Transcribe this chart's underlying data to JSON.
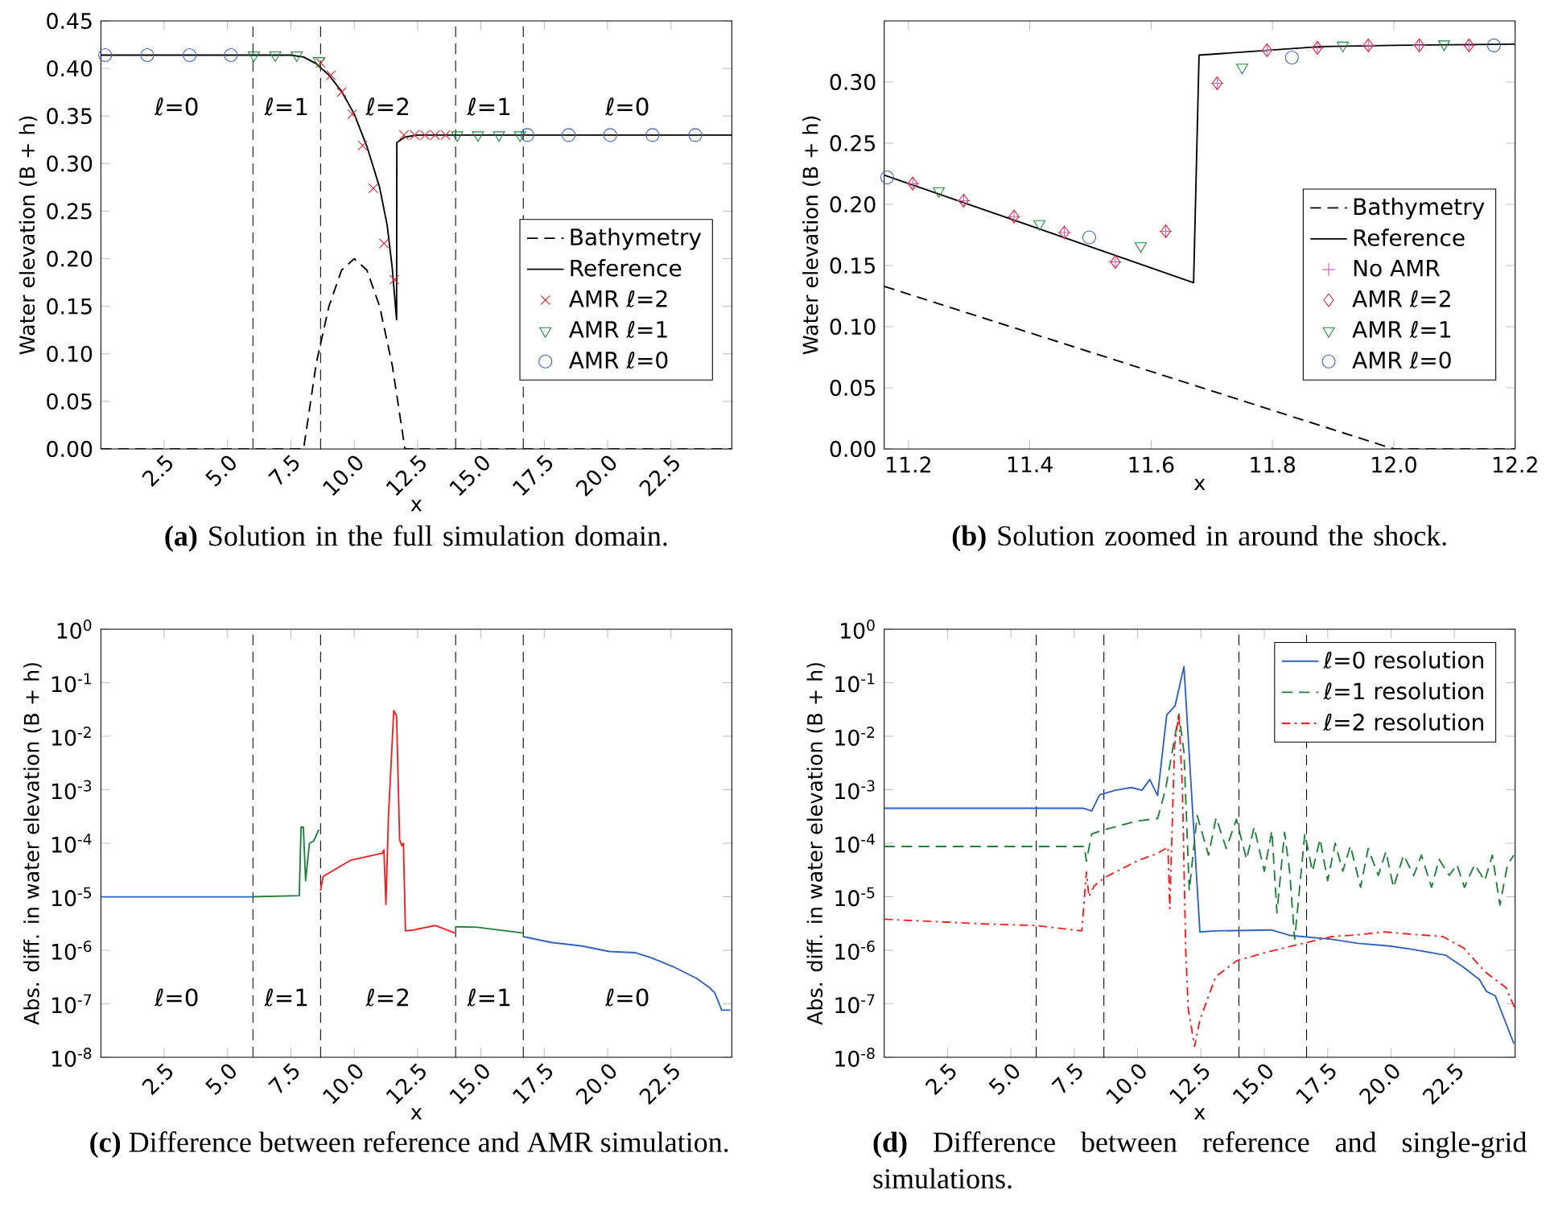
{
  "chart_data": [
    {
      "type": "line",
      "title": "**(a)** Solution in the full simulation domain.",
      "xlabel": "x",
      "ylabel": "Water elevation (B + h)",
      "xlim": [
        0,
        24.9
      ],
      "ylim": [
        0,
        0.45
      ],
      "xticks": [
        2.5,
        {
          "value": 5,
          "label": "5.0"
        },
        7.5,
        {
          "value": 10,
          "label": "10.0"
        },
        12.5,
        {
          "value": 15,
          "label": "15.0"
        },
        17.5,
        {
          "value": 20,
          "label": "20.0"
        },
        22.5
      ],
      "yticks": [
        {
          "value": 0,
          "label": "0.00"
        },
        {
          "value": 0.05,
          "label": "0.05"
        },
        {
          "value": 0.1,
          "label": "0.10"
        },
        {
          "value": 0.15,
          "label": "0.15"
        },
        {
          "value": 0.2,
          "label": "0.20"
        },
        {
          "value": 0.25,
          "label": "0.25"
        },
        {
          "value": 0.3,
          "label": "0.30"
        },
        {
          "value": 0.35,
          "label": "0.35"
        },
        {
          "value": 0.4,
          "label": "0.40"
        },
        {
          "value": 0.45,
          "label": "0.45"
        }
      ],
      "legend": "bottom right",
      "ref_lines": [
        {
          "axis": "x",
          "value": 6.0,
          "color": "#000000",
          "line_style": "dashed"
        },
        {
          "axis": "x",
          "value": 8.67,
          "color": "#000000",
          "line_style": "dashed"
        },
        {
          "axis": "x",
          "value": 14.0,
          "color": "#000000",
          "line_style": "dashed"
        },
        {
          "axis": "x",
          "value": 16.67,
          "color": "#000000",
          "line_style": "dashed"
        }
      ],
      "annotations": [
        "ℓ=0",
        "ℓ=1",
        "ℓ=2",
        "ℓ=1",
        "ℓ=0"
      ],
      "series": [
        {
          "name": "Bathymetry",
          "type": "line",
          "line_style": "dashed",
          "marker": "none",
          "color": "#000000",
          "x": [
            0,
            8,
            8.5,
            9,
            9.5,
            10,
            10.5,
            11,
            11.5,
            12,
            24.9
          ],
          "values": [
            0,
            0,
            0.09,
            0.15,
            0.188,
            0.2,
            0.188,
            0.15,
            0.088,
            0,
            0
          ]
        },
        {
          "name": "Reference",
          "type": "line",
          "line_style": "solid",
          "marker": "none",
          "color": "#000000",
          "x": [
            0,
            7.5,
            8,
            8.5,
            9,
            9.5,
            10,
            10.5,
            11,
            11.3,
            11.5,
            11.67,
            11.68,
            12,
            12.5,
            24.9
          ],
          "values": [
            0.414,
            0.414,
            0.412,
            0.405,
            0.393,
            0.376,
            0.352,
            0.318,
            0.275,
            0.235,
            0.19,
            0.136,
            0.322,
            0.328,
            0.33,
            0.33
          ]
        },
        {
          "name": "AMR ℓ=2",
          "type": "scatter",
          "marker": "cross",
          "color": "#e8202a",
          "x": [
            8.67,
            9.08,
            9.5,
            9.92,
            10.33,
            10.75,
            11.17,
            11.58,
            11.96,
            12.38,
            12.79,
            13.19,
            13.6
          ],
          "values": [
            0.406,
            0.393,
            0.375,
            0.352,
            0.319,
            0.274,
            0.216,
            0.178,
            0.33,
            0.33,
            0.33,
            0.33,
            0.33
          ]
        },
        {
          "name": "AMR ℓ=1",
          "type": "scatter",
          "marker": "triangle",
          "color": "#1a8a3a",
          "x": [
            6.04,
            6.88,
            7.73,
            8.6,
            14.06,
            14.88,
            15.71,
            16.54
          ],
          "values": [
            0.414,
            0.414,
            0.414,
            0.408,
            0.33,
            0.33,
            0.33,
            0.33
          ]
        },
        {
          "name": "AMR ℓ=0",
          "type": "scatter",
          "marker": "circle",
          "color": "#3a5fc0",
          "x": [
            0.17,
            1.83,
            3.5,
            5.13,
            16.83,
            18.46,
            20.1,
            21.77,
            23.46
          ],
          "values": [
            0.414,
            0.414,
            0.414,
            0.414,
            0.33,
            0.33,
            0.33,
            0.33,
            0.33
          ]
        }
      ]
    },
    {
      "type": "line",
      "title": "**(b)** Solution zoomed in around the shock.",
      "xlabel": "x",
      "ylabel": "Water elevation (B + h)",
      "xlim": [
        11.16,
        12.2
      ],
      "ylim": [
        0,
        0.35
      ],
      "xticks": [
        11.2,
        11.4,
        11.6,
        11.8,
        {
          "value": 12,
          "label": "12.0"
        },
        12.2
      ],
      "yticks": [
        {
          "value": 0,
          "label": "0.00"
        },
        {
          "value": 0.05,
          "label": "0.05"
        },
        {
          "value": 0.1,
          "label": "0.10"
        },
        {
          "value": 0.15,
          "label": "0.15"
        },
        {
          "value": 0.2,
          "label": "0.20"
        },
        {
          "value": 0.25,
          "label": "0.25"
        },
        {
          "value": 0.3,
          "label": "0.30"
        }
      ],
      "legend": "bottom right",
      "series": [
        {
          "name": "Bathymetry",
          "type": "line",
          "line_style": "dashed",
          "marker": "none",
          "color": "#000000",
          "x": [
            11.16,
            12.0,
            12.2
          ],
          "values": [
            0.133,
            0,
            0
          ]
        },
        {
          "name": "Reference",
          "type": "line",
          "line_style": "solid",
          "marker": "none",
          "color": "#000000",
          "x": [
            11.16,
            11.67,
            11.679,
            11.88,
            12.0,
            12.2
          ],
          "values": [
            0.224,
            0.136,
            0.322,
            0.329,
            0.33,
            0.331
          ]
        },
        {
          "name": "No AMR",
          "type": "scatter",
          "marker": "plus",
          "color": "#c45ec4",
          "x": [
            11.207,
            11.291,
            11.374,
            11.457,
            11.541,
            11.624,
            11.709,
            11.791,
            11.874,
            11.958,
            12.042,
            12.124
          ],
          "values": [
            0.217,
            0.203,
            0.19,
            0.177,
            0.153,
            0.178,
            0.299,
            0.326,
            0.328,
            0.33,
            0.33,
            0.33
          ]
        },
        {
          "name": "AMR ℓ=2",
          "type": "scatter",
          "marker": "diamond",
          "color": "#e8202a",
          "x": [
            11.207,
            11.291,
            11.374,
            11.457,
            11.541,
            11.624,
            11.709,
            11.791,
            11.874,
            11.958,
            12.042,
            12.124
          ],
          "values": [
            0.217,
            0.203,
            0.19,
            0.177,
            0.153,
            0.178,
            0.299,
            0.326,
            0.328,
            0.33,
            0.33,
            0.33
          ]
        },
        {
          "name": "AMR ℓ=1",
          "type": "scatter",
          "marker": "triangle",
          "color": "#1a8a3a",
          "x": [
            11.25,
            11.416,
            11.583,
            11.75,
            11.916,
            12.083
          ],
          "values": [
            0.211,
            0.184,
            0.166,
            0.312,
            0.33,
            0.331
          ]
        },
        {
          "name": "AMR ℓ=0",
          "type": "scatter",
          "marker": "circle",
          "color": "#3a5fc0",
          "x": [
            11.165,
            11.498,
            11.832,
            12.165
          ],
          "values": [
            0.222,
            0.173,
            0.32,
            0.33
          ]
        }
      ]
    },
    {
      "type": "line",
      "title": "**(c)** Difference between reference and AMR simulation.",
      "xlabel": "x",
      "ylabel": "Abs. diff. in water elevation (B + h)",
      "log": "y",
      "xlim": [
        0,
        24.9
      ],
      "ylim": [
        1e-08,
        1
      ],
      "xticks": [
        2.5,
        {
          "value": 5,
          "label": "5.0"
        },
        7.5,
        {
          "value": 10,
          "label": "10.0"
        },
        12.5,
        {
          "value": 15,
          "label": "15.0"
        },
        17.5,
        {
          "value": 20,
          "label": "20.0"
        },
        22.5
      ],
      "yticks": [
        {
          "value": 1e-08,
          "label": "10$^{-8}$"
        },
        {
          "value": 1e-07,
          "label": "10$^{-7}$"
        },
        {
          "value": 1e-06,
          "label": "10$^{-6}$"
        },
        {
          "value": 1e-05,
          "label": "10$^{-5}$"
        },
        {
          "value": 0.0001,
          "label": "10$^{-4}$"
        },
        {
          "value": 0.001,
          "label": "10$^{-3}$"
        },
        {
          "value": 0.01,
          "label": "10$^{-2}$"
        },
        {
          "value": 0.1,
          "label": "10$^{-1}$"
        },
        {
          "value": 1,
          "label": "10$^{0}$"
        }
      ],
      "ref_lines": [
        {
          "axis": "x",
          "value": 6.0,
          "color": "#000000",
          "line_style": "dashed"
        },
        {
          "axis": "x",
          "value": 8.67,
          "color": "#000000",
          "line_style": "dashed"
        },
        {
          "axis": "x",
          "value": 14.0,
          "color": "#000000",
          "line_style": "dashed"
        },
        {
          "axis": "x",
          "value": 16.67,
          "color": "#000000",
          "line_style": "dashed"
        }
      ],
      "annotations": [
        "ℓ=0",
        "ℓ=1",
        "ℓ=2",
        "ℓ=1",
        "ℓ=0"
      ],
      "series": [
        {
          "color": "#3060c0",
          "x": [
            0,
            6.0
          ],
          "values": [
            1e-05,
            1e-05
          ]
        },
        {
          "color": "#20803a",
          "x": [
            6.0,
            7.83,
            7.9,
            7.99,
            8.08,
            8.23,
            8.4,
            8.6
          ],
          "values": [
            1e-05,
            1.05e-05,
            0.0002,
            0.0002,
            2e-05,
            0.0001,
            0.00011,
            0.00018
          ]
        },
        {
          "color": "#f02020",
          "x": [
            8.67,
            8.77,
            9.85,
            11.1,
            11.17,
            11.25,
            11.35,
            11.56,
            11.67,
            11.79,
            11.88,
            11.94,
            12.02,
            12.35,
            13.19,
            13.98
          ],
          "values": [
            1.3e-05,
            2.4e-05,
            4.8e-05,
            6.5e-05,
            7.5e-05,
            7.2e-06,
            0.00033,
            0.03,
            0.024,
            0.000115,
            9e-05,
            0.0001,
            2.3e-06,
            2.4e-06,
            2.9e-06,
            2.1e-06
          ]
        },
        {
          "color": "#20803a",
          "x": [
            13.98,
            14.85,
            16.67
          ],
          "values": [
            2.75e-06,
            2.7e-06,
            2.1e-06
          ]
        },
        {
          "color": "#3060c0",
          "x": [
            16.67,
            17.77,
            19.0,
            20.06,
            21.1,
            21.73,
            22.56,
            23.5,
            24.02,
            24.23,
            24.5,
            24.85
          ],
          "values": [
            1.8e-06,
            1.4e-06,
            1.2e-06,
            9.5e-07,
            9e-07,
            7.2e-07,
            5e-07,
            3e-07,
            2e-07,
            1.6e-07,
            7.6e-08,
            7.6e-08
          ]
        }
      ]
    },
    {
      "type": "line",
      "title": "**(d)** Difference between reference and single-grid simulations.",
      "xlabel": "x",
      "ylabel": "Abs. diff. in water elevation (B + h)",
      "log": "y",
      "xlim": [
        0,
        24.9
      ],
      "ylim": [
        1e-08,
        1
      ],
      "xticks": [
        2.5,
        {
          "value": 5,
          "label": "5.0"
        },
        7.5,
        {
          "value": 10,
          "label": "10.0"
        },
        12.5,
        {
          "value": 15,
          "label": "15.0"
        },
        17.5,
        {
          "value": 20,
          "label": "20.0"
        },
        22.5
      ],
      "yticks": [
        {
          "value": 1e-08,
          "label": "10$^{-8}$"
        },
        {
          "value": 1e-07,
          "label": "10$^{-7}$"
        },
        {
          "value": 1e-06,
          "label": "10$^{-6}$"
        },
        {
          "value": 1e-05,
          "label": "10$^{-5}$"
        },
        {
          "value": 0.0001,
          "label": "10$^{-4}$"
        },
        {
          "value": 0.001,
          "label": "10$^{-3}$"
        },
        {
          "value": 0.01,
          "label": "10$^{-2}$"
        },
        {
          "value": 0.1,
          "label": "10$^{-1}$"
        },
        {
          "value": 1,
          "label": "10$^{0}$"
        }
      ],
      "legend": "top right",
      "ref_lines": [
        {
          "axis": "x",
          "value": 6.0,
          "color": "#000000",
          "line_style": "dashed"
        },
        {
          "axis": "x",
          "value": 8.67,
          "color": "#000000",
          "line_style": "dashed"
        },
        {
          "axis": "x",
          "value": 14.0,
          "color": "#000000",
          "line_style": "dashed"
        },
        {
          "axis": "x",
          "value": 16.67,
          "color": "#000000",
          "line_style": "dashed"
        }
      ],
      "series": [
        {
          "name": "ℓ=0 resolution",
          "line_style": "solid",
          "color": "#3060c0",
          "x": [
            0,
            7.87,
            8.19,
            8.5,
            9.12,
            9.75,
            10.17,
            10.48,
            10.79,
            11.15,
            11.48,
            11.83,
            12.46,
            13.08,
            15.27,
            16.0,
            17.67,
            18.7,
            19.96,
            20.8,
            22.15,
            22.87,
            23.5,
            23.77,
            24.12,
            24.85
          ],
          "values": [
            0.00045,
            0.00045,
            0.0004,
            0.0008,
            0.00098,
            0.0011,
            0.00098,
            0.00155,
            0.00078,
            0.025,
            0.037,
            0.2,
            2.2e-06,
            2.3e-06,
            2.4e-06,
            1.9e-06,
            1.6e-06,
            1.35e-06,
            1.2e-06,
            1.05e-06,
            8.1e-07,
            4.8e-07,
            2.8e-07,
            1.7e-07,
            1.4e-07,
            1.8e-08
          ]
        },
        {
          "name": "ℓ=1 resolution",
          "line_style": "dashed",
          "color": "#20803a",
          "x": [
            0,
            7.9,
            7.98,
            8.19,
            8.71,
            9.96,
            10.79,
            11.1,
            11.63,
            11.83,
            12.04,
            12.35,
            12.8,
            13.1,
            13.5,
            13.9,
            14.3,
            14.6,
            15.0,
            15.3,
            15.5,
            15.8,
            16.0,
            16.2,
            16.6,
            16.9,
            17.2,
            17.5,
            17.8,
            18.1,
            18.4,
            18.8,
            19.1,
            19.5,
            19.8,
            20.1,
            20.5,
            20.9,
            21.2,
            21.6,
            21.9,
            22.3,
            22.6,
            22.9,
            23.3,
            23.7,
            24.0,
            24.3,
            24.6,
            24.85
          ],
          "values": [
            8.7e-05,
            8.7e-05,
            4.6e-05,
            0.00015,
            0.00018,
            0.00026,
            0.00029,
            0.001,
            0.026,
            0.005,
            1.3e-05,
            0.00033,
            6e-05,
            0.0003,
            8e-05,
            0.00028,
            5e-05,
            0.0002,
            3e-05,
            0.00017,
            5e-06,
            0.00016,
            3e-05,
            1.6e-06,
            0.00015,
            3e-05,
            0.00012,
            2e-05,
            0.0001,
            3e-05,
            9e-05,
            1.5e-05,
            8e-05,
            2.5e-05,
            7e-05,
            1.5e-05,
            6e-05,
            2.5e-05,
            6e-05,
            1.5e-05,
            5e-05,
            2.5e-05,
            4e-05,
            1.5e-05,
            4e-05,
            2e-05,
            6e-05,
            7e-06,
            4e-05,
            6e-05
          ]
        },
        {
          "name": "ℓ=2 resolution",
          "line_style": "dashdot",
          "color": "#f02020",
          "x": [
            0,
            4.0,
            6.0,
            7.8,
            7.98,
            8.08,
            8.29,
            8.71,
            9.96,
            10.79,
            11.2,
            11.27,
            11.46,
            11.63,
            11.77,
            11.9,
            12.0,
            12.25,
            12.46,
            13.08,
            13.92,
            15.17,
            16.4,
            17.67,
            18.7,
            19.75,
            20.8,
            22.05,
            22.87,
            23.7,
            24.54,
            24.9
          ],
          "values": [
            3.8e-06,
            3.1e-06,
            2.9e-06,
            2.3e-06,
            2.9e-05,
            1e-05,
            1.6e-05,
            2.3e-05,
            4.6e-05,
            6.5e-05,
            8.5e-05,
            6e-06,
            0.0066,
            0.026,
            0.001,
            1e-06,
            8e-08,
            1.6e-08,
            5e-08,
            3.2e-07,
            6.4e-07,
            9.4e-07,
            1.3e-06,
            1.8e-06,
            1.95e-06,
            2.2e-06,
            2e-06,
            1.8e-06,
            1.1e-06,
            4e-07,
            2e-07,
            8e-08
          ]
        }
      ]
    }
  ]
}
